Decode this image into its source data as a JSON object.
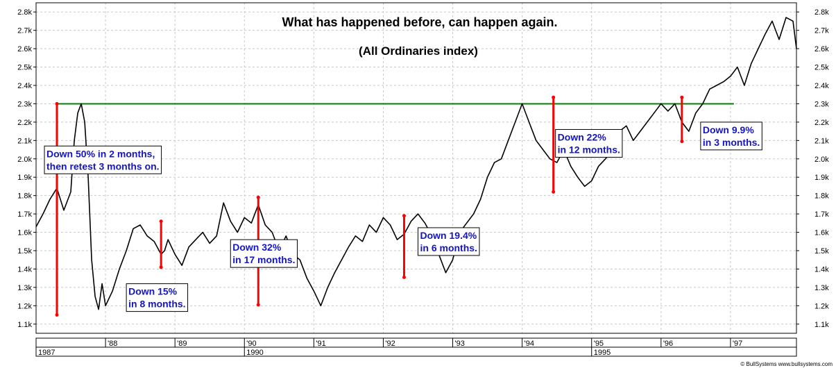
{
  "chart_data": {
    "type": "line",
    "title": "What has happened before, can happen again.",
    "subtitle": "(All Ordinaries index)",
    "xlabel": "",
    "ylabel": "",
    "ylim": [
      1050,
      2850
    ],
    "y_ticks": [
      "1.1k",
      "1.2k",
      "1.3k",
      "1.4k",
      "1.5k",
      "1.6k",
      "1.7k",
      "1.8k",
      "1.9k",
      "2.0k",
      "2.1k",
      "2.2k",
      "2.3k",
      "2.4k",
      "2.5k",
      "2.6k",
      "2.7k",
      "2.8k"
    ],
    "y_tick_values": [
      1100,
      1200,
      1300,
      1400,
      1500,
      1600,
      1700,
      1800,
      1900,
      2000,
      2100,
      2200,
      2300,
      2400,
      2500,
      2600,
      2700,
      2800
    ],
    "xlim": [
      1987.0,
      1997.95
    ],
    "year_ticks": [
      "'88",
      "'89",
      "'90",
      "'91",
      "'92",
      "'93",
      "'94",
      "'95",
      "'96",
      "'97"
    ],
    "year_tick_values": [
      1988,
      1989,
      1990,
      1991,
      1992,
      1993,
      1994,
      1995,
      1996,
      1997
    ],
    "era_labels": [
      {
        "text": "1987",
        "x": 1987.0
      },
      {
        "text": "1990",
        "x": 1990.0
      },
      {
        "text": "1995",
        "x": 1995.0
      }
    ],
    "grid": true,
    "credit": "© BullSystems www.bullsystems.com",
    "series": [
      {
        "x": [
          1987.0,
          1987.1,
          1987.2,
          1987.3,
          1987.4,
          1987.5,
          1987.55,
          1987.6,
          1987.65,
          1987.7,
          1987.75,
          1987.8,
          1987.85,
          1987.9,
          1987.95,
          1988.0,
          1988.1,
          1988.2,
          1988.3,
          1988.4,
          1988.5,
          1988.6,
          1988.7,
          1988.8,
          1988.85,
          1988.9,
          1989.0,
          1989.1,
          1989.2,
          1989.3,
          1989.4,
          1989.5,
          1989.6,
          1989.7,
          1989.8,
          1989.9,
          1990.0,
          1990.1,
          1990.2,
          1990.3,
          1990.4,
          1990.5,
          1990.6,
          1990.7,
          1990.8,
          1990.9,
          1991.0,
          1991.1,
          1991.2,
          1991.3,
          1991.4,
          1991.5,
          1991.6,
          1991.7,
          1991.8,
          1991.9,
          1992.0,
          1992.1,
          1992.2,
          1992.3,
          1992.4,
          1992.5,
          1992.6,
          1992.7,
          1992.8,
          1992.9,
          1993.0,
          1993.1,
          1993.2,
          1993.3,
          1993.4,
          1993.5,
          1993.6,
          1993.7,
          1993.8,
          1993.9,
          1994.0,
          1994.1,
          1994.2,
          1994.3,
          1994.4,
          1994.5,
          1994.6,
          1994.7,
          1994.8,
          1994.9,
          1995.0,
          1995.1,
          1995.2,
          1995.3,
          1995.4,
          1995.5,
          1995.6,
          1995.7,
          1995.8,
          1995.9,
          1996.0,
          1996.1,
          1996.2,
          1996.3,
          1996.4,
          1996.5,
          1996.6,
          1996.7,
          1996.8,
          1996.9,
          1997.0,
          1997.1,
          1997.2,
          1997.3,
          1997.4,
          1997.5,
          1997.6,
          1997.7,
          1997.8,
          1997.9,
          1997.95
        ],
        "values": [
          1630,
          1700,
          1780,
          1840,
          1720,
          1820,
          2100,
          2250,
          2300,
          2200,
          1900,
          1450,
          1250,
          1180,
          1320,
          1200,
          1280,
          1400,
          1500,
          1620,
          1640,
          1580,
          1550,
          1480,
          1500,
          1560,
          1480,
          1420,
          1520,
          1560,
          1600,
          1540,
          1580,
          1760,
          1660,
          1600,
          1680,
          1650,
          1750,
          1640,
          1600,
          1500,
          1580,
          1480,
          1450,
          1350,
          1280,
          1200,
          1300,
          1380,
          1450,
          1520,
          1580,
          1550,
          1640,
          1600,
          1680,
          1640,
          1560,
          1590,
          1660,
          1700,
          1650,
          1580,
          1480,
          1380,
          1450,
          1600,
          1650,
          1700,
          1780,
          1900,
          1980,
          2000,
          2100,
          2200,
          2300,
          2200,
          2100,
          2050,
          2000,
          1980,
          2050,
          1960,
          1900,
          1850,
          1880,
          1960,
          2000,
          2050,
          2150,
          2180,
          2100,
          2150,
          2200,
          2250,
          2300,
          2260,
          2300,
          2200,
          2150,
          2250,
          2300,
          2380,
          2400,
          2420,
          2450,
          2500,
          2400,
          2520,
          2600,
          2680,
          2750,
          2650,
          2770,
          2750,
          2600
        ]
      }
    ],
    "reference_line": {
      "y": 2300,
      "x_start": 1987.3,
      "x_end": 1997.05,
      "color": "#008000"
    },
    "drawdown_bars": [
      {
        "x": 1987.3,
        "y_top": 2300,
        "y_bottom": 1150
      },
      {
        "x": 1988.8,
        "y_top": 1660,
        "y_bottom": 1410
      },
      {
        "x": 1990.2,
        "y_top": 1790,
        "y_bottom": 1205
      },
      {
        "x": 1992.3,
        "y_top": 1690,
        "y_bottom": 1355
      },
      {
        "x": 1994.45,
        "y_top": 2335,
        "y_bottom": 1820
      },
      {
        "x": 1996.3,
        "y_top": 2335,
        "y_bottom": 2095
      }
    ],
    "annotations": [
      {
        "lines": [
          "Down 50% in 2 months,",
          "then retest 3 months on."
        ],
        "x": 1987.12,
        "y": 2070
      },
      {
        "lines": [
          "Down 15%",
          "in 8 months."
        ],
        "x": 1988.3,
        "y": 1320
      },
      {
        "lines": [
          "Down 32%",
          "in 17 months."
        ],
        "x": 1989.8,
        "y": 1560
      },
      {
        "lines": [
          "Down 19.4%",
          "in 6 months."
        ],
        "x": 1992.5,
        "y": 1625
      },
      {
        "lines": [
          "Down 22%",
          "in 12 months."
        ],
        "x": 1994.48,
        "y": 2160
      },
      {
        "lines": [
          "Down 9.9%",
          "in 3 months."
        ],
        "x": 1996.57,
        "y": 2200
      }
    ],
    "colors": {
      "line": "#000000",
      "bars": "#ff0000",
      "annotation_text": "#1414c8",
      "reference": "#008000",
      "grid": "#c8c8c8"
    }
  }
}
